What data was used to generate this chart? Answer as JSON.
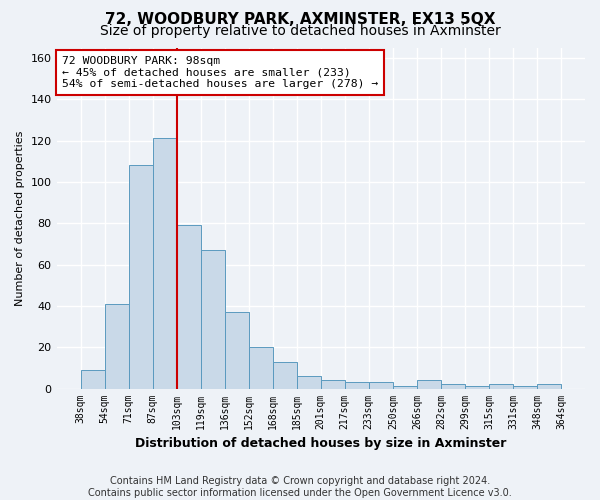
{
  "title": "72, WOODBURY PARK, AXMINSTER, EX13 5QX",
  "subtitle": "Size of property relative to detached houses in Axminster",
  "xlabel": "Distribution of detached houses by size in Axminster",
  "ylabel": "Number of detached properties",
  "bar_labels": [
    "38sqm",
    "54sqm",
    "71sqm",
    "87sqm",
    "103sqm",
    "119sqm",
    "136sqm",
    "152sqm",
    "168sqm",
    "185sqm",
    "201sqm",
    "217sqm",
    "233sqm",
    "250sqm",
    "266sqm",
    "282sqm",
    "299sqm",
    "315sqm",
    "331sqm",
    "348sqm",
    "364sqm"
  ],
  "bar_heights": [
    9,
    41,
    108,
    121,
    79,
    67,
    37,
    20,
    13,
    6,
    4,
    3,
    3,
    1,
    4,
    2,
    1,
    2,
    1,
    2
  ],
  "bar_color": "#c9d9e8",
  "bar_edge_color": "#5a9abf",
  "vline_x": 4,
  "vline_color": "#cc0000",
  "annotation_text": "72 WOODBURY PARK: 98sqm\n← 45% of detached houses are smaller (233)\n54% of semi-detached houses are larger (278) →",
  "annotation_box_color": "#ffffff",
  "annotation_box_edge": "#cc0000",
  "ylim": [
    0,
    165
  ],
  "yticks": [
    0,
    20,
    40,
    60,
    80,
    100,
    120,
    140,
    160
  ],
  "footer": "Contains HM Land Registry data © Crown copyright and database right 2024.\nContains public sector information licensed under the Open Government Licence v3.0.",
  "bg_color": "#eef2f7",
  "grid_color": "#ffffff",
  "title_fontsize": 11,
  "subtitle_fontsize": 10,
  "annot_fontsize": 8.2,
  "footer_fontsize": 7
}
